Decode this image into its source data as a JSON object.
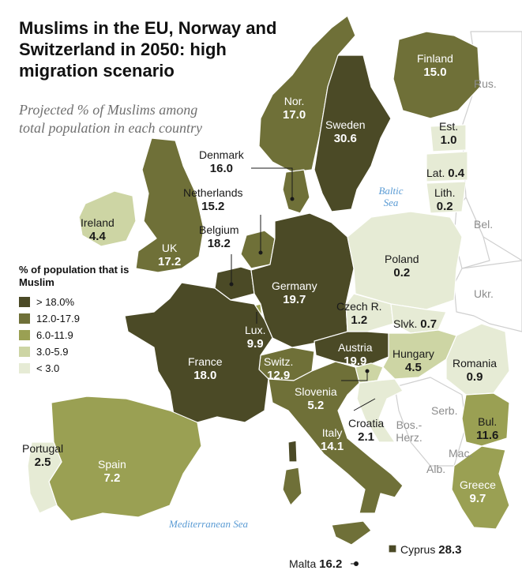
{
  "title": "Muslims in the EU, Norway and Switzerland in 2050: high migration scenario",
  "subtitle": "Projected % of Muslims among total population in each country",
  "legend": {
    "title": "% of population that is Muslim",
    "items": [
      {
        "label": "> 18.0%",
        "color": "#4b4a26"
      },
      {
        "label": "12.0-17.9",
        "color": "#6f7038"
      },
      {
        "label": "6.0-11.9",
        "color": "#9aa053"
      },
      {
        "label": "3.0-5.9",
        "color": "#cdd5a4"
      },
      {
        "label": "< 3.0",
        "color": "#e6ebd5"
      }
    ]
  },
  "countries": {
    "finland": {
      "name": "Finland",
      "value": "15.0"
    },
    "norway": {
      "name": "Nor.",
      "value": "17.0"
    },
    "sweden": {
      "name": "Sweden",
      "value": "30.6"
    },
    "estonia": {
      "name": "Est.",
      "value": "1.0"
    },
    "latvia": {
      "name": "Lat.",
      "value": "0.4"
    },
    "lithuania": {
      "name": "Lith.",
      "value": "0.2"
    },
    "denmark": {
      "name": "Denmark",
      "value": "16.0"
    },
    "netherlands": {
      "name": "Netherlands",
      "value": "15.2"
    },
    "belgium": {
      "name": "Belgium",
      "value": "18.2"
    },
    "ireland": {
      "name": "Ireland",
      "value": "4.4"
    },
    "uk": {
      "name": "UK",
      "value": "17.2"
    },
    "poland": {
      "name": "Poland",
      "value": "0.2"
    },
    "germany": {
      "name": "Germany",
      "value": "19.7"
    },
    "czech": {
      "name": "Czech R.",
      "value": "1.2"
    },
    "slovakia": {
      "name": "Slvk.",
      "value": "0.7"
    },
    "luxembourg": {
      "name": "Lux.",
      "value": "9.9"
    },
    "france": {
      "name": "France",
      "value": "18.0"
    },
    "switzerland": {
      "name": "Switz.",
      "value": "12.9"
    },
    "austria": {
      "name": "Austria",
      "value": "19.9"
    },
    "hungary": {
      "name": "Hungary",
      "value": "4.5"
    },
    "romania": {
      "name": "Romania",
      "value": "0.9"
    },
    "slovenia": {
      "name": "Slovenia",
      "value": "5.2"
    },
    "croatia": {
      "name": "Croatia",
      "value": "2.1"
    },
    "italy": {
      "name": "Italy",
      "value": "14.1"
    },
    "bulgaria": {
      "name": "Bul.",
      "value": "11.6"
    },
    "greece": {
      "name": "Greece",
      "value": "9.7"
    },
    "portugal": {
      "name": "Portugal",
      "value": "2.5"
    },
    "spain": {
      "name": "Spain",
      "value": "7.2"
    },
    "cyprus": {
      "name": "Cyprus",
      "value": "28.3"
    },
    "malta": {
      "name": "Malta",
      "value": "16.2"
    }
  },
  "non_member_labels": {
    "russia": "Rus.",
    "belarus": "Bel.",
    "ukraine": "Ukr.",
    "serbia": "Serb.",
    "bosnia": "Bos.-Herz.",
    "macedonia": "Mac.",
    "albania": "Alb."
  },
  "seas": {
    "baltic": "Baltic Sea",
    "mediterranean": "Mediterranean Sea"
  }
}
